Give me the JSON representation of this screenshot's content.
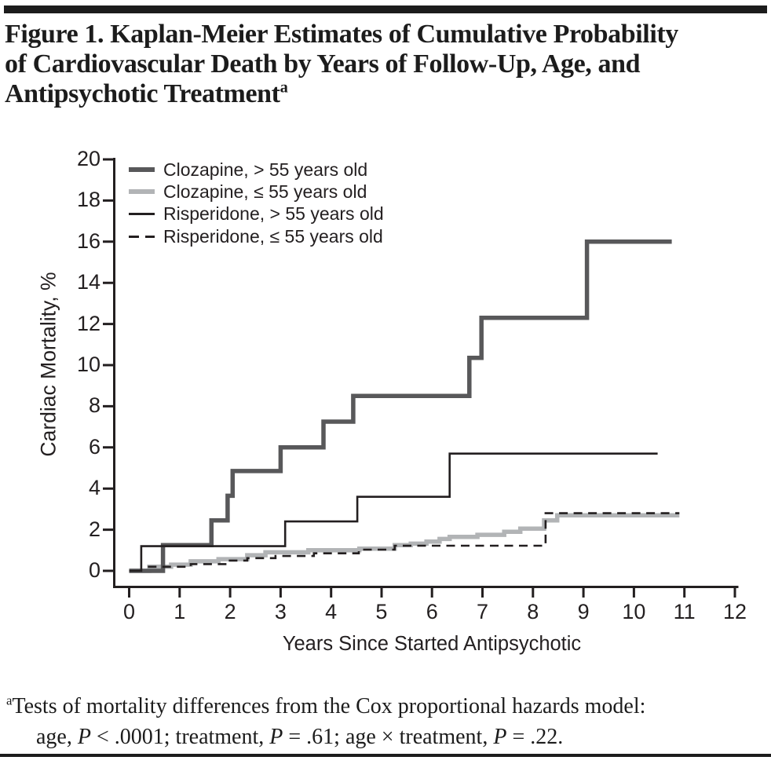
{
  "page": {
    "title_lines": [
      "Figure 1. Kaplan-Meier Estimates of Cumulative Probability",
      "of Cardiovascular Death by Years of Follow-Up, Age, and",
      "Antipsychotic Treatment"
    ],
    "title_superscript": "a",
    "footnote": {
      "superscript": "a",
      "line1": "Tests of mortality differences from the Cox proportional hazards model:",
      "line2_parts": [
        {
          "t": "age, "
        },
        {
          "t": "P",
          "i": true
        },
        {
          "t": " < .0001; treatment, "
        },
        {
          "t": "P",
          "i": true
        },
        {
          "t": " = .61; age × treatment, "
        },
        {
          "t": "P",
          "i": true
        },
        {
          "t": " = .22."
        }
      ]
    }
  },
  "colors": {
    "rule": "#1c1c1c",
    "axis": "#231f20",
    "clozapine_over55": "#58585a",
    "clozapine_under55": "#b2b4b6",
    "risperidone": "#231f20"
  },
  "chart_data": {
    "type": "line",
    "subtype": "kaplan-meier-step",
    "title": "",
    "xlabel": "Years Since Started Antipsychotic",
    "ylabel": "Cardiac Mortality, %",
    "xlim": [
      0,
      12
    ],
    "ylim": [
      0,
      20
    ],
    "xticks": [
      0,
      1,
      2,
      3,
      4,
      5,
      6,
      7,
      8,
      9,
      10,
      11,
      12
    ],
    "yticks": [
      0,
      2,
      4,
      6,
      8,
      10,
      12,
      14,
      16,
      18,
      20
    ],
    "grid": false,
    "legend_position": "top-left-inside",
    "series": [
      {
        "name": "Clozapine, > 55 years old",
        "line": "solid-thick",
        "color": "#58585a",
        "points": [
          [
            0,
            0
          ],
          [
            0.67,
            1.25
          ],
          [
            1.63,
            2.45
          ],
          [
            1.95,
            3.65
          ],
          [
            2.05,
            4.85
          ],
          [
            3.0,
            6.0
          ],
          [
            3.85,
            7.25
          ],
          [
            4.44,
            8.5
          ],
          [
            6.74,
            10.35
          ],
          [
            6.98,
            12.3
          ],
          [
            9.07,
            16.0
          ]
        ],
        "x_end": 10.75
      },
      {
        "name": "Clozapine, ≤ 55 years old",
        "line": "solid-thick",
        "color": "#b2b4b6",
        "points": [
          [
            0,
            0
          ],
          [
            0.4,
            0.2
          ],
          [
            0.83,
            0.3
          ],
          [
            1.22,
            0.46
          ],
          [
            1.77,
            0.57
          ],
          [
            2.34,
            0.76
          ],
          [
            2.7,
            0.9
          ],
          [
            3.55,
            1.0
          ],
          [
            4.56,
            1.08
          ],
          [
            5.26,
            1.25
          ],
          [
            5.58,
            1.32
          ],
          [
            5.89,
            1.42
          ],
          [
            6.15,
            1.55
          ],
          [
            6.35,
            1.65
          ],
          [
            6.9,
            1.75
          ],
          [
            7.43,
            1.9
          ],
          [
            7.75,
            2.05
          ],
          [
            8.22,
            2.45
          ],
          [
            8.48,
            2.7
          ]
        ],
        "x_end": 10.9
      },
      {
        "name": "Risperidone, > 55 years old",
        "line": "solid-thin",
        "color": "#231f20",
        "points": [
          [
            0,
            0
          ],
          [
            0.24,
            1.2
          ],
          [
            3.09,
            2.4
          ],
          [
            4.52,
            3.6
          ],
          [
            6.35,
            5.7
          ]
        ],
        "x_end": 10.47
      },
      {
        "name": "Risperidone, ≤ 55 years old",
        "line": "dashed-thin",
        "color": "#231f20",
        "points": [
          [
            0.37,
            0.2
          ],
          [
            1.22,
            0.33
          ],
          [
            1.95,
            0.5
          ],
          [
            2.34,
            0.62
          ],
          [
            2.9,
            0.72
          ],
          [
            3.66,
            0.85
          ],
          [
            4.55,
            1.03
          ],
          [
            5.26,
            1.22
          ],
          [
            8.25,
            2.8
          ]
        ],
        "x_end": 10.9
      }
    ]
  }
}
